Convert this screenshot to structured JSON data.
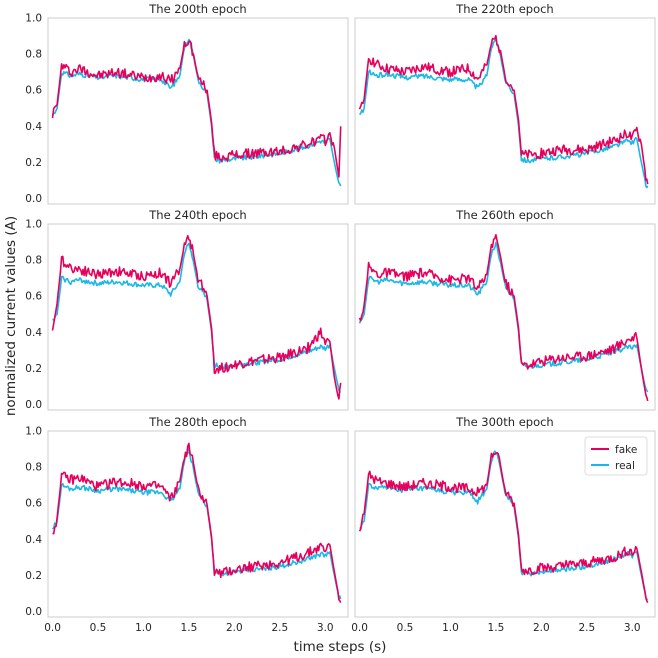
{
  "figure": {
    "xlabel": "time steps (s)",
    "ylabel": "normalized current values (A)"
  },
  "colors": {
    "fake": "#e6005c",
    "real": "#1ab8e8"
  },
  "chart_data": [
    {
      "type": "line",
      "title": "The 200th epoch",
      "xlim": [
        -0.05,
        3.25
      ],
      "ylim": [
        -0.03,
        1.0
      ],
      "xticks": [
        "0.0",
        "0.5",
        "1.0",
        "1.5",
        "2.0",
        "2.5",
        "3.0"
      ],
      "yticks": [
        "0.0",
        "0.2",
        "0.4",
        "0.6",
        "0.8",
        "1.0"
      ],
      "legend": null,
      "series": [
        {
          "name": "fake",
          "x": [
            0,
            0.05,
            0.1,
            0.2,
            0.3,
            0.5,
            0.7,
            1.0,
            1.2,
            1.3,
            1.4,
            1.45,
            1.5,
            1.55,
            1.6,
            1.7,
            1.75,
            1.78,
            1.85,
            2.0,
            2.2,
            2.5,
            2.8,
            2.95,
            3.0,
            3.05,
            3.1,
            3.15,
            3.17
          ],
          "y": [
            0.47,
            0.52,
            0.74,
            0.7,
            0.72,
            0.68,
            0.7,
            0.67,
            0.68,
            0.65,
            0.72,
            0.85,
            0.88,
            0.8,
            0.67,
            0.6,
            0.42,
            0.24,
            0.23,
            0.24,
            0.25,
            0.26,
            0.3,
            0.33,
            0.32,
            0.36,
            0.28,
            0.12,
            0.4
          ]
        },
        {
          "name": "real",
          "x": [
            0,
            0.05,
            0.1,
            0.2,
            0.3,
            0.5,
            0.7,
            1.0,
            1.2,
            1.3,
            1.4,
            1.45,
            1.5,
            1.55,
            1.6,
            1.7,
            1.75,
            1.78,
            1.85,
            2.0,
            2.2,
            2.5,
            2.8,
            2.95,
            3.0,
            3.05,
            3.1,
            3.15,
            3.17
          ],
          "y": [
            0.46,
            0.5,
            0.7,
            0.68,
            0.69,
            0.67,
            0.68,
            0.66,
            0.66,
            0.61,
            0.68,
            0.84,
            0.89,
            0.79,
            0.66,
            0.58,
            0.4,
            0.22,
            0.21,
            0.22,
            0.23,
            0.25,
            0.29,
            0.32,
            0.31,
            0.33,
            0.2,
            0.08,
            0.07
          ]
        }
      ]
    },
    {
      "type": "line",
      "title": "The 220th epoch",
      "xlim": [
        -0.05,
        3.25
      ],
      "ylim": [
        -0.03,
        1.0
      ],
      "xticks": [
        "0.0",
        "0.5",
        "1.0",
        "1.5",
        "2.0",
        "2.5",
        "3.0"
      ],
      "yticks": [
        "0.0",
        "0.2",
        "0.4",
        "0.6",
        "0.8",
        "1.0"
      ],
      "legend": null,
      "series": [
        {
          "name": "fake",
          "x": [
            0,
            0.05,
            0.1,
            0.2,
            0.3,
            0.5,
            0.7,
            1.0,
            1.2,
            1.3,
            1.4,
            1.45,
            1.5,
            1.55,
            1.6,
            1.7,
            1.75,
            1.78,
            1.85,
            2.0,
            2.2,
            2.5,
            2.8,
            2.95,
            3.0,
            3.05,
            3.1,
            3.15,
            3.17
          ],
          "y": [
            0.47,
            0.55,
            0.78,
            0.74,
            0.72,
            0.7,
            0.73,
            0.7,
            0.72,
            0.66,
            0.74,
            0.86,
            0.89,
            0.82,
            0.68,
            0.6,
            0.43,
            0.24,
            0.24,
            0.25,
            0.27,
            0.27,
            0.32,
            0.36,
            0.33,
            0.38,
            0.3,
            0.12,
            0.08
          ]
        },
        {
          "name": "real",
          "x": [
            0,
            0.05,
            0.1,
            0.2,
            0.3,
            0.5,
            0.7,
            1.0,
            1.2,
            1.3,
            1.4,
            1.45,
            1.5,
            1.55,
            1.6,
            1.7,
            1.75,
            1.78,
            1.85,
            2.0,
            2.2,
            2.5,
            2.8,
            2.95,
            3.0,
            3.05,
            3.1,
            3.15,
            3.17
          ],
          "y": [
            0.46,
            0.5,
            0.7,
            0.68,
            0.69,
            0.67,
            0.68,
            0.66,
            0.66,
            0.61,
            0.68,
            0.84,
            0.89,
            0.79,
            0.66,
            0.58,
            0.4,
            0.22,
            0.21,
            0.22,
            0.23,
            0.25,
            0.29,
            0.32,
            0.31,
            0.33,
            0.2,
            0.08,
            0.07
          ]
        }
      ]
    },
    {
      "type": "line",
      "title": "The 240th epoch",
      "xlim": [
        -0.05,
        3.25
      ],
      "ylim": [
        -0.03,
        1.0
      ],
      "xticks": [
        "0.0",
        "0.5",
        "1.0",
        "1.5",
        "2.0",
        "2.5",
        "3.0"
      ],
      "yticks": [
        "0.0",
        "0.2",
        "0.4",
        "0.6",
        "0.8",
        "1.0"
      ],
      "legend": null,
      "series": [
        {
          "name": "fake",
          "x": [
            0,
            0.05,
            0.1,
            0.2,
            0.3,
            0.5,
            0.7,
            1.0,
            1.2,
            1.3,
            1.4,
            1.45,
            1.5,
            1.55,
            1.6,
            1.7,
            1.75,
            1.78,
            1.85,
            2.0,
            2.2,
            2.5,
            2.8,
            2.95,
            3.0,
            3.05,
            3.1,
            3.15,
            3.17
          ],
          "y": [
            0.41,
            0.56,
            0.8,
            0.76,
            0.75,
            0.72,
            0.74,
            0.71,
            0.73,
            0.67,
            0.75,
            0.88,
            0.94,
            0.83,
            0.7,
            0.6,
            0.42,
            0.2,
            0.2,
            0.22,
            0.24,
            0.26,
            0.31,
            0.4,
            0.34,
            0.35,
            0.15,
            0.02,
            0.12
          ]
        },
        {
          "name": "real",
          "x": [
            0,
            0.05,
            0.1,
            0.2,
            0.3,
            0.5,
            0.7,
            1.0,
            1.2,
            1.3,
            1.4,
            1.45,
            1.5,
            1.55,
            1.6,
            1.7,
            1.75,
            1.78,
            1.85,
            2.0,
            2.2,
            2.5,
            2.8,
            2.95,
            3.0,
            3.05,
            3.1,
            3.15,
            3.17
          ],
          "y": [
            0.46,
            0.5,
            0.7,
            0.68,
            0.69,
            0.67,
            0.68,
            0.66,
            0.66,
            0.61,
            0.68,
            0.84,
            0.89,
            0.79,
            0.66,
            0.58,
            0.4,
            0.22,
            0.21,
            0.22,
            0.23,
            0.25,
            0.29,
            0.32,
            0.31,
            0.33,
            0.2,
            0.08,
            0.07
          ]
        }
      ]
    },
    {
      "type": "line",
      "title": "The 260th epoch",
      "xlim": [
        -0.05,
        3.25
      ],
      "ylim": [
        -0.03,
        1.0
      ],
      "xticks": [
        "0.0",
        "0.5",
        "1.0",
        "1.5",
        "2.0",
        "2.5",
        "3.0"
      ],
      "yticks": [
        "0.0",
        "0.2",
        "0.4",
        "0.6",
        "0.8",
        "1.0"
      ],
      "legend": null,
      "series": [
        {
          "name": "fake",
          "x": [
            0,
            0.05,
            0.1,
            0.2,
            0.3,
            0.5,
            0.7,
            1.0,
            1.2,
            1.3,
            1.4,
            1.45,
            1.5,
            1.55,
            1.6,
            1.7,
            1.75,
            1.78,
            1.85,
            2.0,
            2.2,
            2.5,
            2.8,
            2.95,
            3.0,
            3.05,
            3.1,
            3.15,
            3.17
          ],
          "y": [
            0.47,
            0.55,
            0.76,
            0.72,
            0.73,
            0.71,
            0.73,
            0.69,
            0.7,
            0.64,
            0.72,
            0.88,
            0.94,
            0.82,
            0.68,
            0.6,
            0.42,
            0.22,
            0.22,
            0.24,
            0.26,
            0.27,
            0.31,
            0.36,
            0.37,
            0.37,
            0.2,
            0.05,
            0.02
          ]
        },
        {
          "name": "real",
          "x": [
            0,
            0.05,
            0.1,
            0.2,
            0.3,
            0.5,
            0.7,
            1.0,
            1.2,
            1.3,
            1.4,
            1.45,
            1.5,
            1.55,
            1.6,
            1.7,
            1.75,
            1.78,
            1.85,
            2.0,
            2.2,
            2.5,
            2.8,
            2.95,
            3.0,
            3.05,
            3.1,
            3.15,
            3.17
          ],
          "y": [
            0.46,
            0.5,
            0.7,
            0.68,
            0.69,
            0.67,
            0.68,
            0.66,
            0.66,
            0.61,
            0.68,
            0.84,
            0.89,
            0.79,
            0.66,
            0.58,
            0.4,
            0.22,
            0.21,
            0.22,
            0.23,
            0.25,
            0.29,
            0.32,
            0.31,
            0.33,
            0.2,
            0.08,
            0.07
          ]
        }
      ]
    },
    {
      "type": "line",
      "title": "The 280th epoch",
      "xlim": [
        -0.05,
        3.25
      ],
      "ylim": [
        -0.03,
        1.0
      ],
      "xticks": [
        "0.0",
        "0.5",
        "1.0",
        "1.5",
        "2.0",
        "2.5",
        "3.0"
      ],
      "yticks": [
        "0.0",
        "0.2",
        "0.4",
        "0.6",
        "0.8",
        "1.0"
      ],
      "legend": null,
      "series": [
        {
          "name": "fake",
          "x": [
            0,
            0.05,
            0.1,
            0.2,
            0.3,
            0.5,
            0.7,
            1.0,
            1.2,
            1.3,
            1.4,
            1.45,
            1.5,
            1.55,
            1.6,
            1.7,
            1.75,
            1.78,
            1.85,
            2.0,
            2.2,
            2.5,
            2.8,
            2.95,
            3.0,
            3.05,
            3.1,
            3.15,
            3.17
          ],
          "y": [
            0.43,
            0.52,
            0.75,
            0.73,
            0.74,
            0.69,
            0.72,
            0.7,
            0.69,
            0.62,
            0.72,
            0.86,
            0.91,
            0.82,
            0.68,
            0.59,
            0.41,
            0.22,
            0.21,
            0.23,
            0.25,
            0.27,
            0.32,
            0.36,
            0.34,
            0.37,
            0.22,
            0.08,
            0.05
          ]
        },
        {
          "name": "real",
          "x": [
            0,
            0.05,
            0.1,
            0.2,
            0.3,
            0.5,
            0.7,
            1.0,
            1.2,
            1.3,
            1.4,
            1.45,
            1.5,
            1.55,
            1.6,
            1.7,
            1.75,
            1.78,
            1.85,
            2.0,
            2.2,
            2.5,
            2.8,
            2.95,
            3.0,
            3.05,
            3.1,
            3.15,
            3.17
          ],
          "y": [
            0.46,
            0.5,
            0.7,
            0.68,
            0.69,
            0.67,
            0.68,
            0.66,
            0.66,
            0.61,
            0.68,
            0.84,
            0.89,
            0.79,
            0.66,
            0.58,
            0.4,
            0.22,
            0.21,
            0.22,
            0.23,
            0.25,
            0.29,
            0.32,
            0.31,
            0.33,
            0.2,
            0.08,
            0.07
          ]
        }
      ]
    },
    {
      "type": "line",
      "title": "The 300th epoch",
      "xlim": [
        -0.05,
        3.25
      ],
      "ylim": [
        -0.03,
        1.0
      ],
      "xticks": [
        "0.0",
        "0.5",
        "1.0",
        "1.5",
        "2.0",
        "2.5",
        "3.0"
      ],
      "yticks": [
        "0.0",
        "0.2",
        "0.4",
        "0.6",
        "0.8",
        "1.0"
      ],
      "legend": "top-right",
      "series": [
        {
          "name": "fake",
          "x": [
            0,
            0.05,
            0.1,
            0.2,
            0.3,
            0.5,
            0.7,
            1.0,
            1.2,
            1.3,
            1.4,
            1.45,
            1.5,
            1.55,
            1.6,
            1.7,
            1.75,
            1.78,
            1.85,
            2.0,
            2.2,
            2.5,
            2.8,
            2.95,
            3.0,
            3.05,
            3.1,
            3.15,
            3.17
          ],
          "y": [
            0.45,
            0.54,
            0.76,
            0.72,
            0.71,
            0.69,
            0.71,
            0.69,
            0.68,
            0.66,
            0.7,
            0.86,
            0.89,
            0.81,
            0.67,
            0.6,
            0.42,
            0.23,
            0.23,
            0.24,
            0.25,
            0.27,
            0.3,
            0.34,
            0.33,
            0.35,
            0.22,
            0.08,
            0.05
          ]
        },
        {
          "name": "real",
          "x": [
            0,
            0.05,
            0.1,
            0.2,
            0.3,
            0.5,
            0.7,
            1.0,
            1.2,
            1.3,
            1.4,
            1.45,
            1.5,
            1.55,
            1.6,
            1.7,
            1.75,
            1.78,
            1.85,
            2.0,
            2.2,
            2.5,
            2.8,
            2.95,
            3.0,
            3.05,
            3.1,
            3.15,
            3.17
          ],
          "y": [
            0.46,
            0.5,
            0.7,
            0.68,
            0.69,
            0.67,
            0.68,
            0.66,
            0.66,
            0.61,
            0.68,
            0.84,
            0.89,
            0.79,
            0.66,
            0.58,
            0.4,
            0.22,
            0.21,
            0.22,
            0.23,
            0.25,
            0.29,
            0.32,
            0.31,
            0.33,
            0.2,
            0.08,
            0.07
          ]
        }
      ]
    }
  ]
}
